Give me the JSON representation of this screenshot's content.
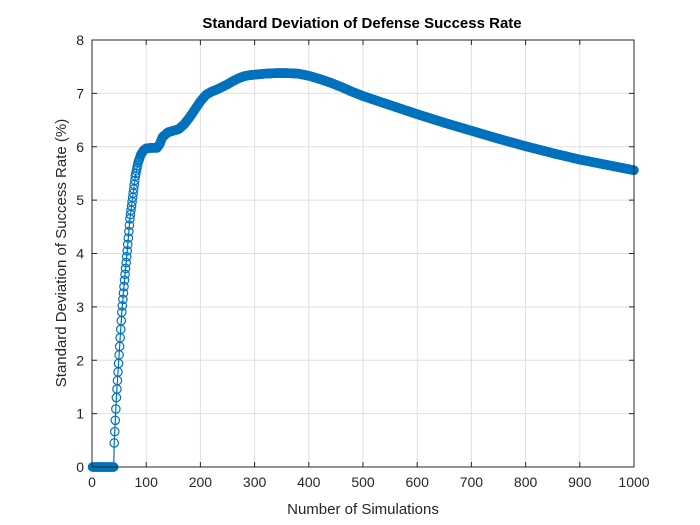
{
  "chart_data": {
    "type": "line",
    "title": "Standard Deviation of Defense Success Rate",
    "xlabel": "Number of Simulations",
    "ylabel": "Standard Deviation of Success Rate (%)",
    "xlim": [
      0,
      1000
    ],
    "ylim": [
      0,
      8
    ],
    "xticks": [
      "0",
      "100",
      "200",
      "300",
      "400",
      "500",
      "600",
      "700",
      "800",
      "900",
      "1000"
    ],
    "yticks": [
      "0",
      "1",
      "2",
      "3",
      "4",
      "5",
      "6",
      "7",
      "8"
    ],
    "grid": true,
    "marker": "circle",
    "color": "#0072BD",
    "series": [
      {
        "x": [
          1,
          40,
          41,
          45,
          50,
          55,
          60,
          65,
          70,
          75,
          80,
          85,
          90,
          95,
          100,
          110,
          120,
          125,
          130,
          140,
          150,
          160,
          170,
          180,
          190,
          200,
          210,
          220,
          230,
          240,
          250,
          260,
          270,
          280,
          290,
          300,
          320,
          340,
          360,
          380,
          400,
          420,
          440,
          460,
          480,
          500,
          550,
          600,
          650,
          700,
          750,
          800,
          850,
          900,
          950,
          1000
        ],
        "y": [
          0,
          0,
          0.45,
          1.3,
          2.1,
          2.9,
          3.5,
          4.05,
          4.65,
          5.05,
          5.45,
          5.7,
          5.85,
          5.93,
          5.97,
          5.98,
          5.98,
          6.05,
          6.18,
          6.27,
          6.3,
          6.33,
          6.42,
          6.55,
          6.7,
          6.85,
          6.97,
          7.03,
          7.07,
          7.12,
          7.17,
          7.23,
          7.28,
          7.32,
          7.34,
          7.35,
          7.37,
          7.38,
          7.38,
          7.37,
          7.33,
          7.27,
          7.2,
          7.12,
          7.03,
          6.95,
          6.78,
          6.61,
          6.45,
          6.3,
          6.15,
          6.01,
          5.88,
          5.76,
          5.66,
          5.56
        ]
      }
    ]
  }
}
